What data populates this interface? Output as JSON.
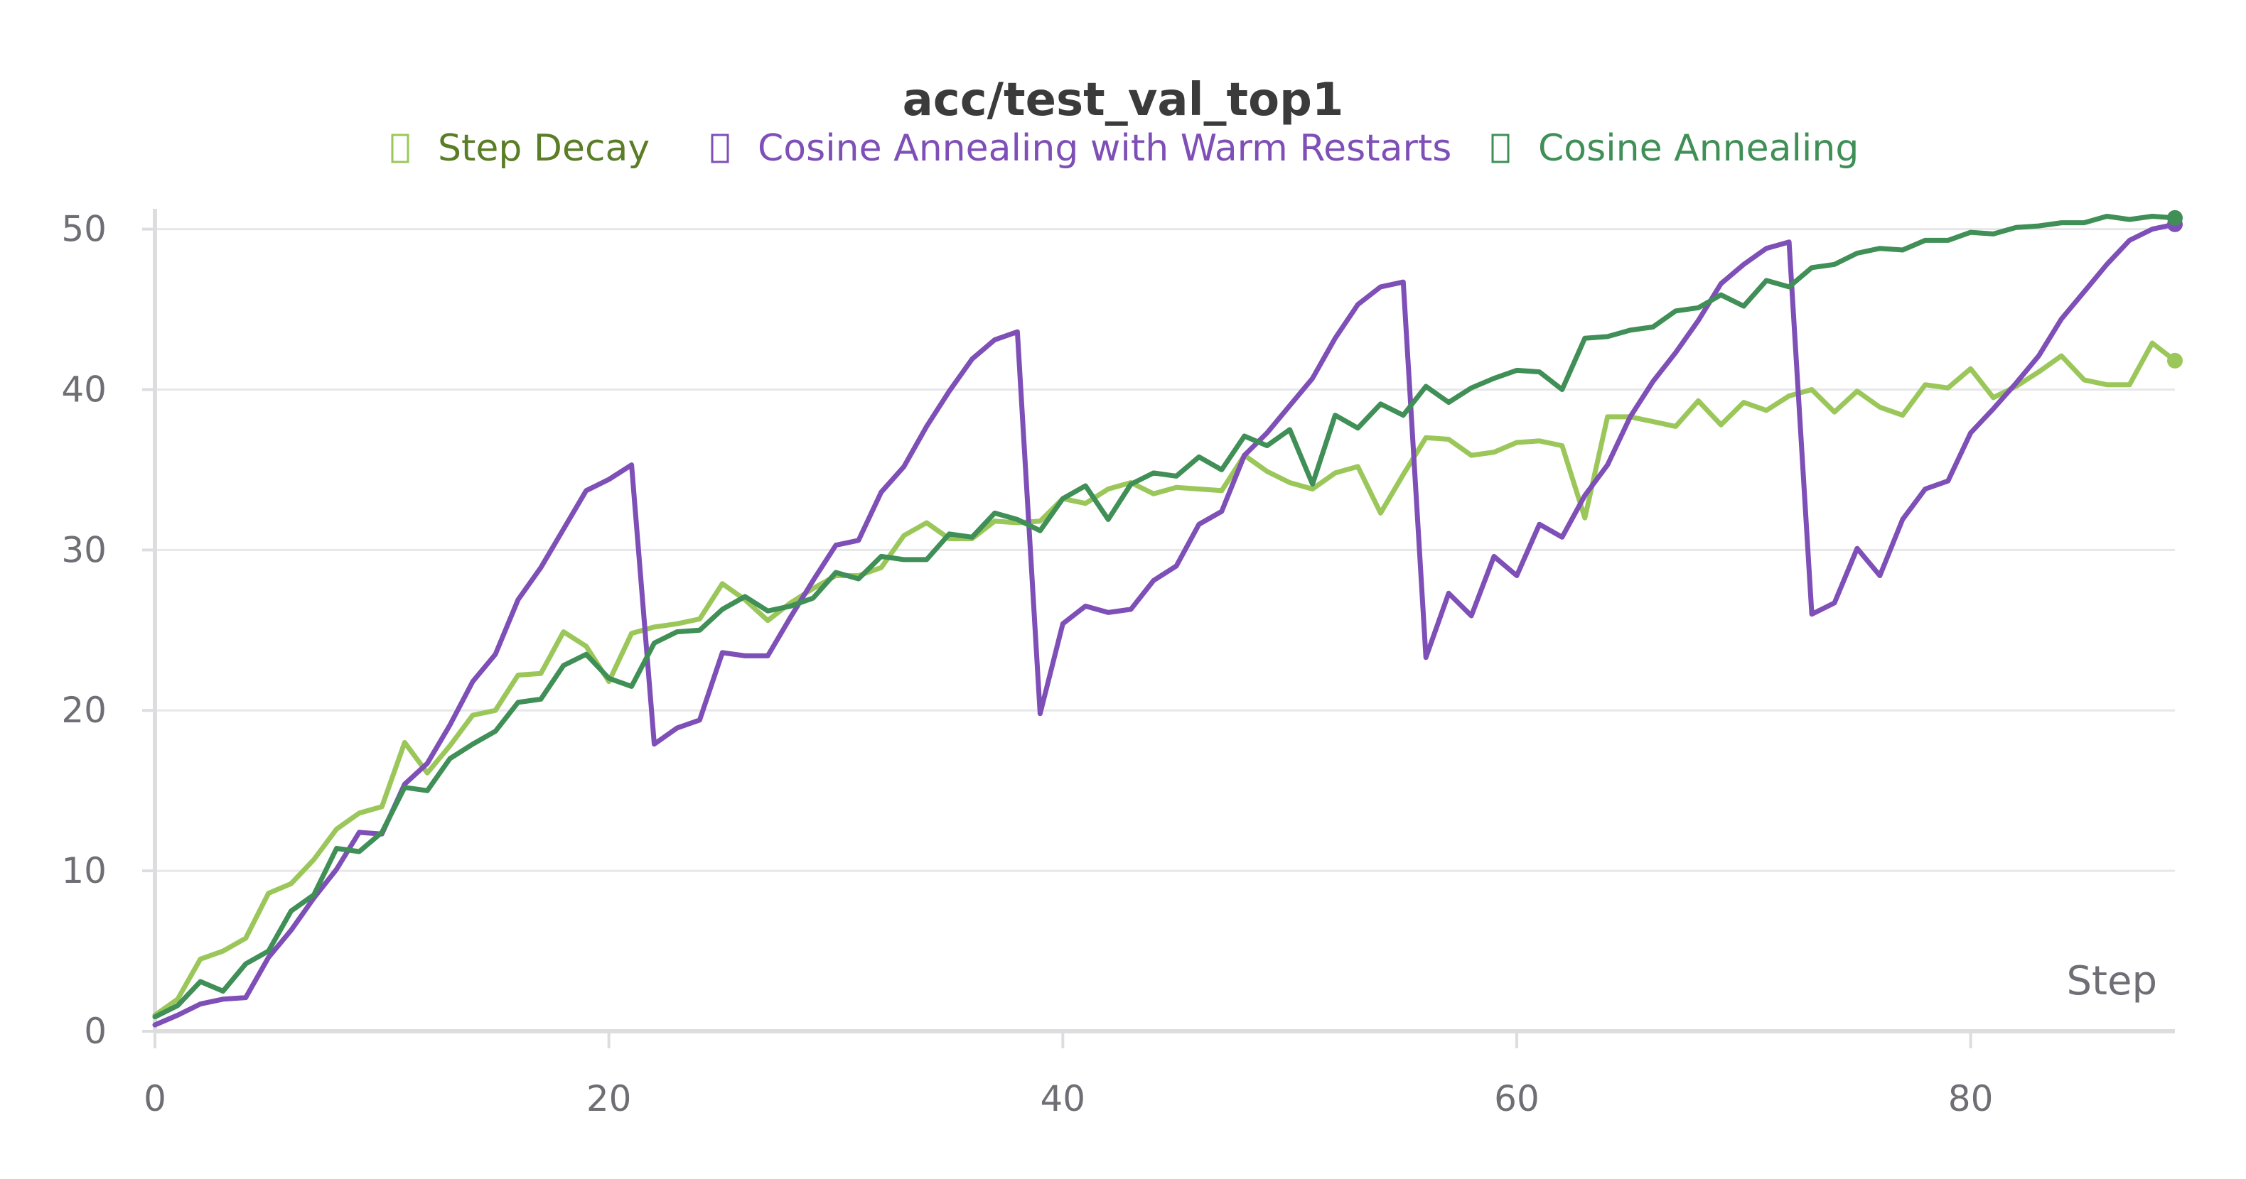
{
  "chart_data": {
    "type": "line",
    "title": "acc/test_val_top1",
    "xlabel": "Step",
    "ylabel": "",
    "xlim": [
      0,
      89
    ],
    "ylim": [
      0,
      51
    ],
    "xticks": [
      0,
      20,
      40,
      60,
      80
    ],
    "yticks": [
      0,
      10,
      20,
      30,
      40,
      50
    ],
    "grid": true,
    "legend_position": "top",
    "x": [
      0,
      1,
      2,
      3,
      4,
      5,
      6,
      7,
      8,
      9,
      10,
      11,
      12,
      13,
      14,
      15,
      16,
      17,
      18,
      19,
      20,
      21,
      22,
      23,
      24,
      25,
      26,
      27,
      28,
      29,
      30,
      31,
      32,
      33,
      34,
      35,
      36,
      37,
      38,
      39,
      40,
      41,
      42,
      43,
      44,
      45,
      46,
      47,
      48,
      49,
      50,
      51,
      52,
      53,
      54,
      55,
      56,
      57,
      58,
      59,
      60,
      61,
      62,
      63,
      64,
      65,
      66,
      67,
      68,
      69,
      70,
      71,
      72,
      73,
      74,
      75,
      76,
      77,
      78,
      79,
      80,
      81,
      82,
      83,
      84,
      85,
      86,
      87,
      88,
      89
    ],
    "series": [
      {
        "name": "Step Decay",
        "color": "#9bc75a",
        "text_color": "#5a7d26",
        "values": [
          1.0,
          2.0,
          4.5,
          5.0,
          5.8,
          8.6,
          9.2,
          10.7,
          12.6,
          13.6,
          14.0,
          18.0,
          16.1,
          17.8,
          19.7,
          20.0,
          22.2,
          22.3,
          24.9,
          24.0,
          21.8,
          24.8,
          25.2,
          25.4,
          25.7,
          27.9,
          26.9,
          25.6,
          26.7,
          27.6,
          28.4,
          28.4,
          28.9,
          30.9,
          31.7,
          30.7,
          30.7,
          31.8,
          31.7,
          31.8,
          33.2,
          32.9,
          33.8,
          34.2,
          33.5,
          33.9,
          33.8,
          33.7,
          35.9,
          34.9,
          34.2,
          33.8,
          34.8,
          35.2,
          32.3,
          34.7,
          37.0,
          36.9,
          35.9,
          36.1,
          36.7,
          36.8,
          36.5,
          32.0,
          38.3,
          38.3,
          38.0,
          37.7,
          39.3,
          37.8,
          39.2,
          38.7,
          39.6,
          40.0,
          38.6,
          39.9,
          38.9,
          38.4,
          40.3,
          40.1,
          41.3,
          39.5,
          40.2,
          41.1,
          42.1,
          40.6,
          40.3,
          40.3,
          42.9,
          41.8
        ]
      },
      {
        "name": "Cosine Annealing with Warm Restarts",
        "color": "#7e4fb7",
        "text_color": "#7e4fb7",
        "values": [
          0.4,
          1.0,
          1.7,
          2.0,
          2.1,
          4.6,
          6.3,
          8.3,
          10.1,
          12.4,
          12.3,
          15.4,
          16.7,
          19.1,
          21.8,
          23.5,
          26.9,
          28.9,
          31.3,
          33.7,
          34.4,
          35.3,
          17.9,
          18.9,
          19.4,
          23.6,
          23.4,
          23.4,
          25.8,
          28.1,
          30.3,
          30.6,
          33.6,
          35.2,
          37.7,
          39.9,
          41.9,
          43.1,
          43.6,
          19.8,
          25.4,
          26.5,
          26.1,
          26.3,
          28.1,
          29.0,
          31.6,
          32.4,
          35.9,
          37.3,
          39.0,
          40.7,
          43.2,
          45.3,
          46.4,
          46.7,
          23.3,
          27.3,
          25.9,
          29.6,
          28.4,
          31.6,
          30.8,
          33.4,
          35.3,
          38.3,
          40.5,
          42.3,
          44.3,
          46.6,
          47.8,
          48.8,
          49.2,
          26.0,
          26.7,
          30.1,
          28.4,
          31.9,
          33.8,
          34.3,
          37.3,
          38.8,
          40.4,
          42.1,
          44.4,
          46.1,
          47.8,
          49.3,
          50.0,
          50.3
        ]
      },
      {
        "name": "Cosine Annealing",
        "color": "#3f8f57",
        "text_color": "#3f8f57",
        "values": [
          0.9,
          1.6,
          3.1,
          2.5,
          4.2,
          5.0,
          7.5,
          8.5,
          11.4,
          11.2,
          12.4,
          15.2,
          15.0,
          17.0,
          17.9,
          18.7,
          20.5,
          20.7,
          22.8,
          23.5,
          22.0,
          21.5,
          24.2,
          24.9,
          25.0,
          26.3,
          27.1,
          26.2,
          26.5,
          27.0,
          28.6,
          28.2,
          29.6,
          29.4,
          29.4,
          31.0,
          30.8,
          32.3,
          31.9,
          31.2,
          33.2,
          34.0,
          31.9,
          34.1,
          34.8,
          34.6,
          35.8,
          35.0,
          37.1,
          36.5,
          37.5,
          34.1,
          38.4,
          37.6,
          39.1,
          38.4,
          40.2,
          39.2,
          40.1,
          40.7,
          41.2,
          41.1,
          40.0,
          43.2,
          43.3,
          43.7,
          43.9,
          44.9,
          45.1,
          45.9,
          45.2,
          46.8,
          46.4,
          47.6,
          47.8,
          48.5,
          48.8,
          48.7,
          49.3,
          49.3,
          49.8,
          49.7,
          50.1,
          50.2,
          50.4,
          50.4,
          50.8,
          50.6,
          50.8,
          50.7
        ]
      }
    ]
  }
}
